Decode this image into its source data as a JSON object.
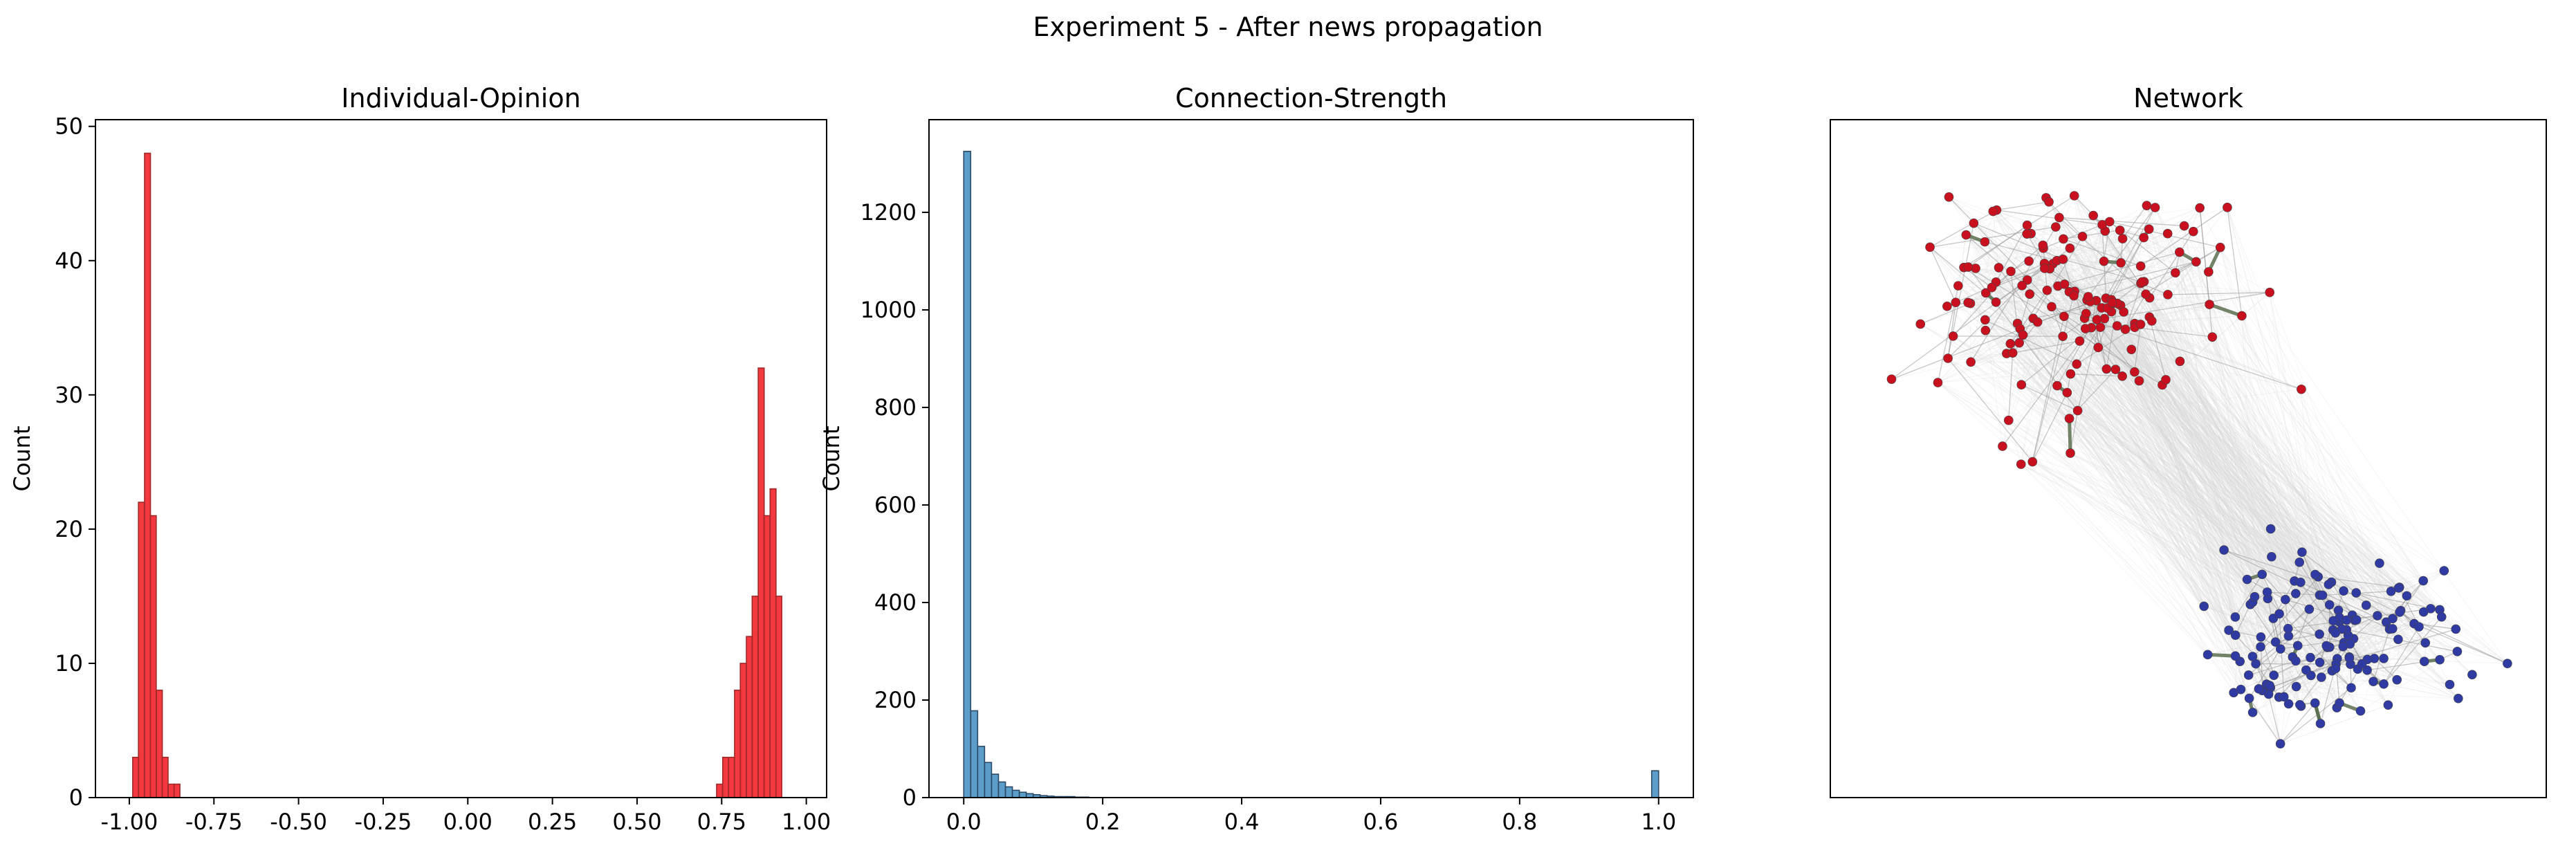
{
  "figure": {
    "suptitle": "Experiment 5 - After news propagation"
  },
  "chart_data": [
    {
      "type": "bar",
      "subtype": "histogram",
      "title": "Individual-Opinion",
      "xlabel": "",
      "ylabel": "Count",
      "xlim": [
        -1.1,
        1.06
      ],
      "ylim": [
        0,
        50.5
      ],
      "xticks": [
        "-1.00",
        "-0.75",
        "-0.50",
        "-0.25",
        "0.00",
        "0.25",
        "0.50",
        "0.75",
        "1.00"
      ],
      "yticks": [
        "0",
        "10",
        "20",
        "30",
        "40",
        "50"
      ],
      "bar_color": "#f0000a",
      "edge_color": "#a02a2a",
      "bin_width": 0.0175,
      "bins": [
        {
          "x": -0.99,
          "count": 3
        },
        {
          "x": -0.973,
          "count": 22
        },
        {
          "x": -0.955,
          "count": 48
        },
        {
          "x": -0.938,
          "count": 21
        },
        {
          "x": -0.92,
          "count": 8
        },
        {
          "x": -0.903,
          "count": 3
        },
        {
          "x": -0.885,
          "count": 1
        },
        {
          "x": -0.868,
          "count": 1
        },
        {
          "x": 0.735,
          "count": 1
        },
        {
          "x": 0.753,
          "count": 3
        },
        {
          "x": 0.77,
          "count": 3
        },
        {
          "x": 0.788,
          "count": 8
        },
        {
          "x": 0.805,
          "count": 10
        },
        {
          "x": 0.823,
          "count": 12
        },
        {
          "x": 0.84,
          "count": 15
        },
        {
          "x": 0.858,
          "count": 32
        },
        {
          "x": 0.875,
          "count": 21
        },
        {
          "x": 0.893,
          "count": 23
        },
        {
          "x": 0.91,
          "count": 15
        }
      ]
    },
    {
      "type": "bar",
      "subtype": "histogram",
      "title": "Connection-Strength",
      "xlabel": "",
      "ylabel": "Count",
      "xlim": [
        -0.05,
        1.05
      ],
      "ylim": [
        0,
        1390
      ],
      "xticks": [
        "0.0",
        "0.2",
        "0.4",
        "0.6",
        "0.8",
        "1.0"
      ],
      "yticks": [
        "0",
        "200",
        "400",
        "600",
        "800",
        "1000",
        "1200"
      ],
      "bar_color": "#1f77b4",
      "edge_color": "#2a4a66",
      "bin_width": 0.01,
      "bins": [
        {
          "x": 0.0,
          "count": 1325
        },
        {
          "x": 0.01,
          "count": 178
        },
        {
          "x": 0.02,
          "count": 105
        },
        {
          "x": 0.03,
          "count": 72
        },
        {
          "x": 0.04,
          "count": 48
        },
        {
          "x": 0.05,
          "count": 32
        },
        {
          "x": 0.06,
          "count": 22
        },
        {
          "x": 0.07,
          "count": 15
        },
        {
          "x": 0.08,
          "count": 11
        },
        {
          "x": 0.09,
          "count": 8
        },
        {
          "x": 0.1,
          "count": 6
        },
        {
          "x": 0.11,
          "count": 4
        },
        {
          "x": 0.12,
          "count": 3
        },
        {
          "x": 0.13,
          "count": 2
        },
        {
          "x": 0.14,
          "count": 2
        },
        {
          "x": 0.15,
          "count": 2
        },
        {
          "x": 0.16,
          "count": 1
        },
        {
          "x": 0.17,
          "count": 1
        },
        {
          "x": 0.99,
          "count": 55
        }
      ]
    },
    {
      "type": "scatter",
      "subtype": "network-graph",
      "title": "Network",
      "xlabel": "",
      "ylabel": "",
      "xlim": [
        0,
        100
      ],
      "ylim": [
        0,
        100
      ],
      "axes_ticks": false,
      "node_colors": {
        "cluster_a": "#c8101e",
        "cluster_b": "#2f3aa2"
      },
      "edge_color": "#9a9a9a",
      "strong_edge_color": "#5a6e4e",
      "clusters": [
        {
          "name": "cluster_a",
          "center": [
            34,
            73
          ],
          "spread": [
            17,
            12
          ],
          "count": 155,
          "seed": 7
        },
        {
          "name": "cluster_b",
          "center": [
            70,
            23
          ],
          "spread": [
            15,
            9
          ],
          "count": 145,
          "seed": 19
        }
      ]
    }
  ]
}
